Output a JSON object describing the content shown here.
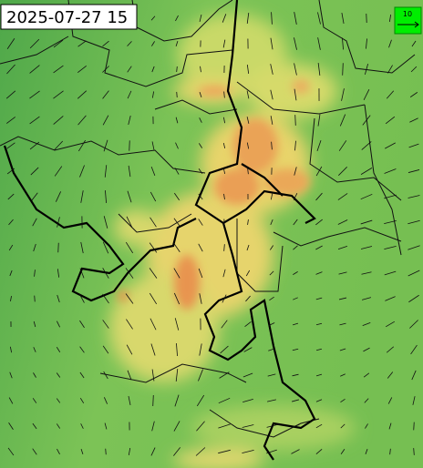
{
  "timestamp": "2025-07-27 15",
  "legend": {
    "label": "10"
  }
}
